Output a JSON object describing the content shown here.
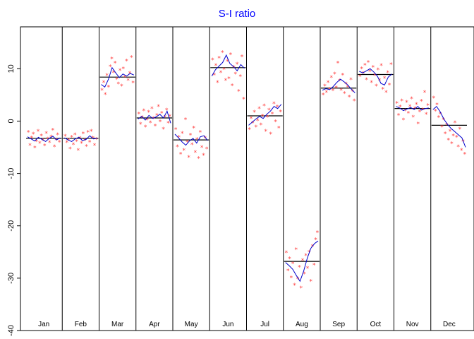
{
  "chart_data": {
    "type": "line",
    "title": "S-I ratio",
    "xlabel": "",
    "ylabel": "",
    "ylim": [
      -40,
      18
    ],
    "yticks": [
      -40,
      -30,
      -20,
      -10,
      0,
      10
    ],
    "ytick_labels": [
      "-40",
      "-30",
      "-20",
      "-10",
      "0",
      "10"
    ],
    "colors": {
      "title": "#0000ff",
      "points": "#ff4040",
      "seasonal_line": "#0000cc",
      "mean_line": "#000000",
      "axis": "#000000"
    },
    "point_symbol": "*",
    "months": [
      {
        "name": "Jan",
        "mean": -3.3,
        "trend": [
          -3.0,
          -3.4,
          -3.8,
          -3.1,
          -3.5,
          -3.9,
          -3.3,
          -2.9,
          -3.6,
          -3.2
        ],
        "points": [
          -2.0,
          -4.5,
          -3.1,
          -2.4,
          -5.0,
          -3.8,
          -1.8,
          -4.1,
          -2.7,
          -3.6,
          -4.6,
          -2.2,
          -3.3,
          -4.0,
          -2.9,
          -1.6,
          -4.8,
          -3.5,
          -2.5,
          -3.9
        ]
      },
      {
        "name": "Feb",
        "mean": -3.3,
        "trend": [
          -3.2,
          -3.6,
          -3.9,
          -3.4,
          -3.1,
          -3.7,
          -3.5,
          -2.8,
          -3.4,
          -3.3
        ],
        "points": [
          -2.8,
          -4.0,
          -3.5,
          -5.2,
          -3.0,
          -4.4,
          -2.5,
          -3.8,
          -5.5,
          -3.2,
          -4.1,
          -2.3,
          -3.6,
          -4.7,
          -2.0,
          -3.9,
          -1.8,
          -3.1,
          -4.5,
          -3.4
        ]
      },
      {
        "name": "Mar",
        "mean": 8.4,
        "trend": [
          7.0,
          6.5,
          8.0,
          10.2,
          9.2,
          8.3,
          9.0,
          8.6,
          9.1,
          8.8
        ],
        "points": [
          6.0,
          7.5,
          5.2,
          8.8,
          6.6,
          10.5,
          12.0,
          9.4,
          11.2,
          8.1,
          7.2,
          9.8,
          6.8,
          10.1,
          8.5,
          11.6,
          7.9,
          9.2,
          12.3,
          7.4
        ]
      },
      {
        "name": "Apr",
        "mean": 0.6,
        "trend": [
          0.4,
          0.9,
          0.2,
          1.1,
          0.5,
          0.8,
          1.3,
          0.6,
          1.9,
          -0.4
        ],
        "points": [
          1.5,
          -0.5,
          0.8,
          2.1,
          -1.0,
          0.3,
          1.8,
          -0.2,
          2.5,
          0.6,
          -0.8,
          1.2,
          2.9,
          0.0,
          1.6,
          -1.4,
          0.9,
          2.2,
          -0.3,
          1.0
        ]
      },
      {
        "name": "May",
        "mean": -3.6,
        "trend": [
          -2.5,
          -3.2,
          -4.0,
          -4.6,
          -3.8,
          -3.3,
          -4.2,
          -3.0,
          -2.8,
          -3.7
        ],
        "points": [
          -1.5,
          -4.8,
          -3.0,
          -6.2,
          -2.2,
          -5.5,
          0.4,
          -3.9,
          -6.8,
          -2.6,
          -4.4,
          -1.2,
          -5.9,
          -3.4,
          -7.0,
          -2.0,
          -4.9,
          -6.4,
          -3.1,
          -5.2
        ]
      },
      {
        "name": "Jun",
        "mean": 10.2,
        "trend": [
          8.6,
          9.8,
          10.5,
          11.2,
          12.6,
          11.0,
          10.4,
          9.6,
          10.8,
          10.1
        ],
        "points": [
          11.8,
          8.9,
          10.7,
          7.5,
          12.1,
          9.4,
          13.2,
          10.0,
          7.9,
          11.5,
          8.2,
          12.8,
          6.9,
          10.4,
          9.1,
          11.0,
          5.8,
          8.6,
          12.4,
          4.3
        ]
      },
      {
        "name": "Jul",
        "mean": 1.0,
        "trend": [
          -0.8,
          -0.2,
          0.4,
          0.9,
          0.5,
          1.3,
          1.9,
          2.8,
          2.4,
          3.2
        ],
        "points": [
          -1.5,
          0.6,
          -0.3,
          1.8,
          -1.0,
          0.2,
          2.5,
          -0.6,
          1.1,
          3.0,
          -1.8,
          0.9,
          2.2,
          -2.4,
          1.5,
          3.4,
          0.0,
          2.8,
          -1.2,
          1.9
        ]
      },
      {
        "name": "Aug",
        "mean": -26.8,
        "trend": [
          -27.0,
          -27.6,
          -28.3,
          -29.5,
          -30.6,
          -28.7,
          -26.2,
          -24.3,
          -23.4,
          -22.9
        ],
        "points": [
          -25.0,
          -28.5,
          -26.2,
          -29.8,
          -27.1,
          -31.2,
          -24.4,
          -30.0,
          -27.8,
          -31.8,
          -26.5,
          -29.1,
          -25.6,
          -28.0,
          -24.9,
          -30.5,
          -23.8,
          -27.4,
          -22.5,
          -21.2
        ]
      },
      {
        "name": "Sep",
        "mean": 6.3,
        "trend": [
          5.9,
          6.2,
          6.0,
          6.6,
          7.4,
          8.0,
          7.5,
          6.9,
          6.1,
          5.4
        ],
        "points": [
          5.1,
          6.8,
          5.6,
          7.5,
          6.2,
          8.4,
          5.9,
          9.1,
          6.5,
          11.2,
          7.8,
          6.0,
          8.9,
          5.4,
          7.2,
          6.6,
          4.7,
          8.0,
          5.8,
          4.0
        ]
      },
      {
        "name": "Oct",
        "mean": 8.9,
        "trend": [
          9.5,
          9.2,
          9.6,
          10.0,
          9.4,
          8.6,
          7.2,
          6.9,
          8.4,
          9.0
        ],
        "points": [
          8.6,
          10.1,
          9.2,
          10.8,
          8.0,
          11.3,
          9.6,
          7.5,
          10.4,
          8.8,
          6.8,
          9.9,
          7.9,
          10.7,
          6.2,
          8.3,
          5.6,
          9.4,
          7.0,
          10.9
        ]
      },
      {
        "name": "Nov",
        "mean": 2.4,
        "trend": [
          2.8,
          2.5,
          2.0,
          2.3,
          2.6,
          2.2,
          2.8,
          2.1,
          2.4,
          2.5
        ],
        "points": [
          3.5,
          1.2,
          2.8,
          4.0,
          0.3,
          2.1,
          3.7,
          1.6,
          2.9,
          4.4,
          0.9,
          2.5,
          3.3,
          -0.4,
          1.9,
          3.9,
          2.3,
          5.6,
          1.4,
          3.1
        ]
      },
      {
        "name": "Dec",
        "mean": -0.8,
        "trend": [
          2.2,
          2.8,
          1.8,
          0.4,
          -0.6,
          -1.4,
          -2.0,
          -2.6,
          -3.2,
          -5.0
        ],
        "points": [
          4.5,
          2.0,
          3.2,
          0.8,
          1.5,
          -1.0,
          0.4,
          -2.3,
          -0.6,
          -3.5,
          -1.8,
          -4.2,
          -2.7,
          -0.2,
          -3.0,
          -4.8,
          -1.4,
          -5.5,
          -3.8,
          -6.2
        ]
      }
    ]
  }
}
